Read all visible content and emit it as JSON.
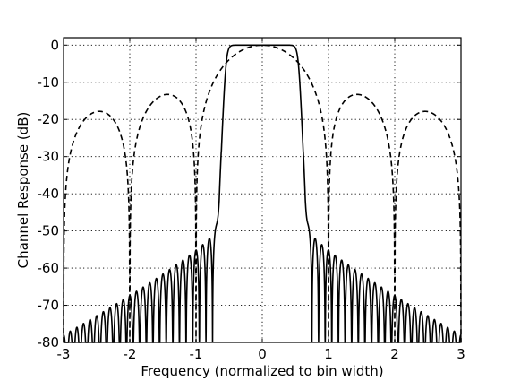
{
  "chart_data": {
    "type": "line",
    "title": "",
    "xlabel": "Frequency (normalized to bin width)",
    "ylabel": "Channel Response (dB)",
    "xlim": [
      -3,
      3
    ],
    "ylim": [
      -80,
      2
    ],
    "xticks": [
      "-3",
      "-2",
      "-1",
      "0",
      "1",
      "2",
      "3"
    ],
    "yticks": [
      "0",
      "-10",
      "-20",
      "-30",
      "-40",
      "-50",
      "-60",
      "-70",
      "-80"
    ],
    "grid": true,
    "legend": "none",
    "series": [
      {
        "style": "solid",
        "color": "#000000",
        "description_points": {
          "x": [
            -2.95,
            -2.85,
            -2.75,
            -2.65,
            -2.55,
            -2.45,
            -2.35,
            -2.25,
            -2.15,
            -2.05,
            -1.95,
            -1.85,
            -1.75,
            -1.65,
            -1.55,
            -1.45,
            -1.35,
            -1.25,
            -1.15,
            -1.05,
            -0.95,
            -0.75,
            -0.55,
            -0.4,
            -0.3,
            -0.2,
            0.0,
            0.2,
            0.3,
            0.4,
            0.55,
            0.75,
            0.95,
            1.05,
            1.15,
            1.25,
            1.35,
            1.45,
            1.55,
            1.65,
            1.75,
            1.85,
            1.95,
            2.05,
            2.15,
            2.25,
            2.35,
            2.45,
            2.55,
            2.65,
            2.75,
            2.85,
            2.95
          ],
          "y": [
            -79,
            -78.5,
            -77.5,
            -76.5,
            -76,
            -75,
            -74.5,
            -74,
            -72,
            -74,
            -71,
            -70,
            -69,
            -68.5,
            -67.5,
            -66,
            -65,
            -64,
            -63,
            -64,
            -72,
            -51.5,
            -10,
            -1.5,
            -0.2,
            0,
            0,
            0,
            -0.2,
            -1.5,
            -10,
            -51.5,
            -72,
            -64,
            -63,
            -64,
            -65,
            -66,
            -67.5,
            -68.5,
            -69,
            -70,
            -71,
            -74,
            -72,
            -74,
            -74.5,
            -75,
            -76,
            -76.5,
            -77.5,
            -78.5,
            -79
          ]
        }
      },
      {
        "style": "dashed",
        "color": "#000000",
        "description_points": {
          "x": [
            -3.0,
            -2.5,
            -2.0,
            -1.5,
            -1.0,
            -0.5,
            0.0,
            0.5,
            1.0,
            1.5,
            2.0,
            2.5,
            3.0
          ],
          "y": [
            -80,
            -17.8,
            -80,
            -13.3,
            -80,
            -3.9,
            0,
            -3.9,
            -80,
            -13.3,
            -80,
            -17.8,
            -80
          ]
        }
      }
    ]
  }
}
